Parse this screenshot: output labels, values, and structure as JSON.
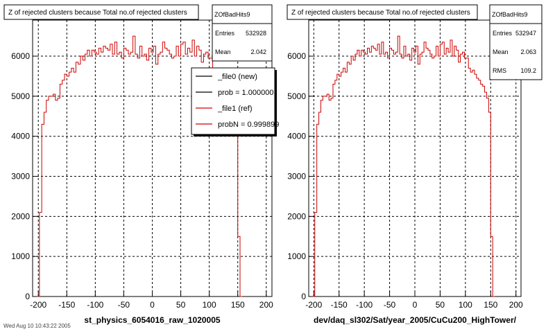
{
  "footer_text": "Wed Aug 10 10:43:22 2005",
  "chart_data": [
    {
      "type": "histogram",
      "title": "Z of rejected clusters  because Total no.of rejected clusters",
      "xlabel": "st_physics_6054016_raw_1020005",
      "ylabel": "",
      "xlim": [
        -210,
        210
      ],
      "ylim": [
        0,
        6900
      ],
      "x_ticks": [
        "-200",
        "-150",
        "-100",
        "-50",
        "0",
        "50",
        "100",
        "150",
        "200"
      ],
      "y_ticks": [
        "0",
        "1000",
        "2000",
        "3000",
        "4000",
        "5000",
        "6000"
      ],
      "grid": true,
      "bin_width": 4,
      "bin_edges_range": [
        -202,
        202
      ],
      "values": [
        0,
        2100,
        4300,
        4600,
        4900,
        5000,
        5000,
        5050,
        4900,
        4950,
        5300,
        5400,
        5550,
        5500,
        5600,
        5700,
        5600,
        5850,
        5800,
        6000,
        5900,
        6050,
        6150,
        6000,
        6150,
        6100,
        6050,
        6200,
        6100,
        6250,
        6200,
        6150,
        6300,
        6050,
        6350,
        6050,
        6100,
        5950,
        6200,
        6150,
        6050,
        6100,
        6500,
        6050,
        5950,
        6250,
        6000,
        6050,
        5900,
        6200,
        6100,
        6250,
        5800,
        6050,
        6100,
        6350,
        6200,
        6150,
        6050,
        5950,
        6000,
        6250,
        6000,
        6300,
        6350,
        6050,
        6200,
        6100,
        6400,
        6000,
        6250,
        6150,
        5850,
        6050,
        6100,
        5950,
        5950,
        5700,
        5600,
        5650,
        5550,
        5450,
        5400,
        5300,
        5250,
        5100,
        4950,
        4600,
        1500,
        0
      ],
      "stats": {
        "name": "ZOfBadHits9",
        "rows": [
          {
            "label": "Entries",
            "value": "532928"
          },
          {
            "label": "Mean",
            "value": "2.042"
          }
        ]
      },
      "legend": [
        {
          "label": "_file0 (new)",
          "color": "#000000"
        },
        {
          "label": "prob = 1.000000",
          "color": "#000000"
        },
        {
          "label": "_file1 (ref)",
          "color": "#cc0000"
        },
        {
          "label": "probN = 0.999899",
          "color": "#cc0000"
        }
      ],
      "colors": {
        "line": "#cc0000",
        "frame": "#000000"
      }
    },
    {
      "type": "histogram",
      "title": "Z of rejected clusters  because Total no.of rejected clusters",
      "xlabel": "dev/daq_sl302/Sat/year_2005/CuCu200_HighTower/",
      "ylabel": "",
      "xlim": [
        -210,
        210
      ],
      "ylim": [
        0,
        6900
      ],
      "x_ticks": [
        "-200",
        "-150",
        "-100",
        "-50",
        "0",
        "50",
        "100",
        "150",
        "200"
      ],
      "y_ticks": [
        "0",
        "1000",
        "2000",
        "3000",
        "4000",
        "5000",
        "6000"
      ],
      "grid": true,
      "bin_width": 4,
      "bin_edges_range": [
        -202,
        202
      ],
      "values": [
        0,
        2100,
        4300,
        4600,
        4900,
        5000,
        5000,
        5050,
        4900,
        4950,
        5300,
        5400,
        5550,
        5500,
        5600,
        5700,
        5600,
        5850,
        5800,
        6000,
        5900,
        6050,
        6150,
        6000,
        6150,
        6100,
        6050,
        6200,
        6100,
        6250,
        6200,
        6150,
        6300,
        6050,
        6350,
        6050,
        6100,
        5950,
        6200,
        6150,
        6050,
        6100,
        6500,
        6050,
        5950,
        6250,
        6000,
        6050,
        5900,
        6200,
        6100,
        6250,
        5800,
        6050,
        6100,
        6350,
        6200,
        6150,
        6050,
        5950,
        6000,
        6250,
        6000,
        6300,
        6350,
        6050,
        6200,
        6100,
        6400,
        6000,
        6250,
        6150,
        5850,
        6050,
        6100,
        5950,
        5950,
        5700,
        5600,
        5650,
        5550,
        5450,
        5400,
        5300,
        5250,
        5100,
        4950,
        4600,
        1500,
        0
      ],
      "stats": {
        "name": "ZOfBadHits9",
        "rows": [
          {
            "label": "Entries",
            "value": "532947"
          },
          {
            "label": "Mean",
            "value": "2.063"
          },
          {
            "label": "RMS",
            "value": "109.2"
          }
        ]
      },
      "legend": [],
      "colors": {
        "line": "#cc0000",
        "frame": "#000000"
      }
    }
  ]
}
